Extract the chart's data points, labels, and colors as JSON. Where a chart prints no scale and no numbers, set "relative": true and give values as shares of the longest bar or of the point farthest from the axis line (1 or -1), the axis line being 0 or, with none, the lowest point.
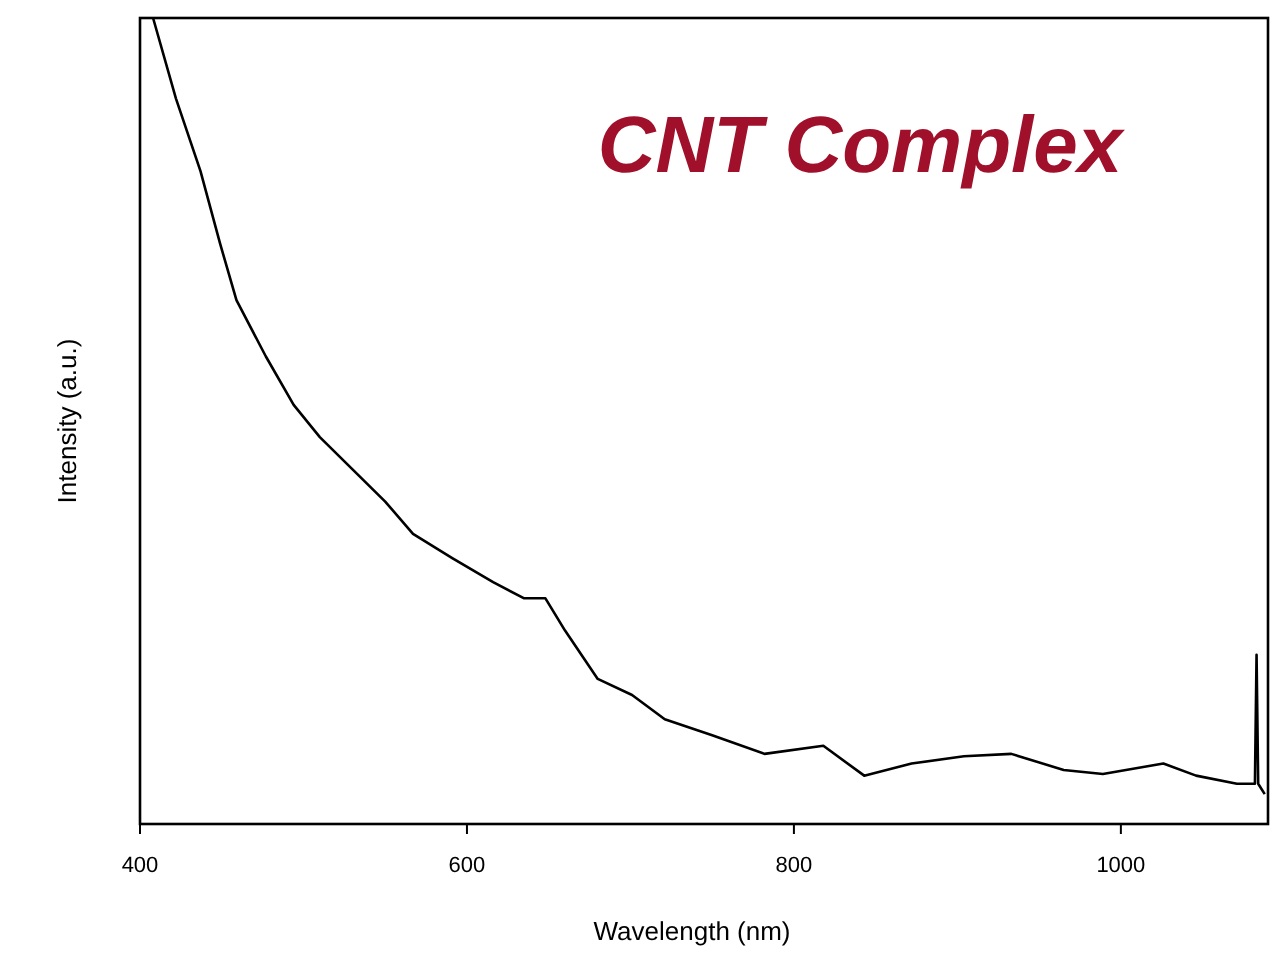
{
  "chart_data": {
    "type": "line",
    "title": "CNT Complex",
    "xlabel": "Wavelength (nm)",
    "ylabel": "Intensity (a.u.)",
    "relative": true,
    "xlim": [
      400,
      1090
    ],
    "xticks": [
      400,
      600,
      800,
      1000
    ],
    "grid": false,
    "line_style": "solid",
    "x": [
      408,
      422,
      437,
      449,
      459,
      477,
      494,
      510,
      530,
      550,
      567,
      591,
      616,
      635,
      648,
      660,
      680,
      701,
      721,
      750,
      782,
      818,
      843,
      872,
      904,
      933,
      965,
      989,
      1026,
      1046,
      1071,
      1082,
      1083,
      1084,
      1088
    ],
    "series": [
      {
        "color": "#000000",
        "values": [
          1.0,
          0.9,
          0.81,
          0.72,
          0.65,
          0.58,
          0.52,
          0.48,
          0.44,
          0.4,
          0.36,
          0.33,
          0.3,
          0.28,
          0.28,
          0.24,
          0.18,
          0.16,
          0.13,
          0.11,
          0.087,
          0.097,
          0.06,
          0.075,
          0.084,
          0.087,
          0.067,
          0.062,
          0.075,
          0.06,
          0.05,
          0.05,
          0.21,
          0.05,
          0.037
        ]
      }
    ]
  }
}
